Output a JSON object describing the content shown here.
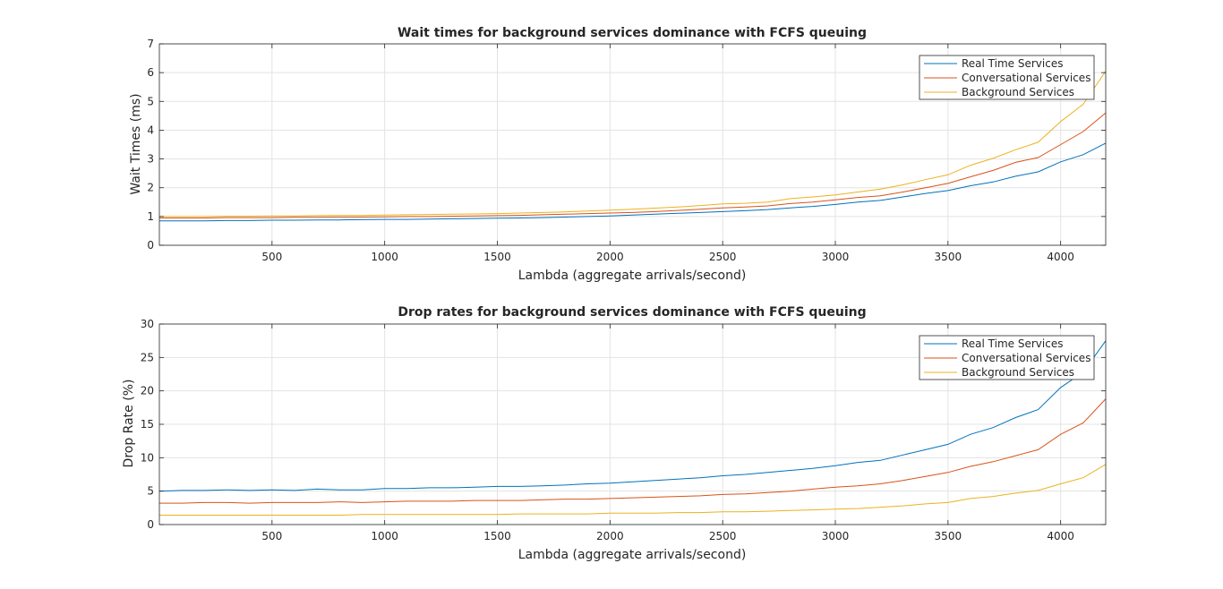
{
  "chart_data": [
    {
      "type": "line",
      "title": "Wait times for background services dominance with FCFS queuing",
      "xlabel": "Lambda (aggregate arrivals/second)",
      "ylabel": "Wait Times (ms)",
      "xlim": [
        0,
        4200
      ],
      "ylim": [
        0,
        7
      ],
      "xticks": [
        500,
        1000,
        1500,
        2000,
        2500,
        3000,
        3500,
        4000
      ],
      "yticks": [
        0,
        1,
        2,
        3,
        4,
        5,
        6,
        7
      ],
      "grid": true,
      "legend_position": "top-right",
      "x": [
        0,
        100,
        200,
        300,
        400,
        500,
        600,
        700,
        800,
        900,
        1000,
        1100,
        1200,
        1300,
        1400,
        1500,
        1600,
        1700,
        1800,
        1900,
        2000,
        2100,
        2200,
        2300,
        2400,
        2500,
        2600,
        2700,
        2800,
        2900,
        3000,
        3100,
        3200,
        3300,
        3400,
        3500,
        3600,
        3700,
        3800,
        3900,
        4000,
        4100,
        4200
      ],
      "series": [
        {
          "name": "Real Time Services",
          "color": "#0072BD",
          "values": [
            0.85,
            0.85,
            0.85,
            0.86,
            0.86,
            0.87,
            0.87,
            0.88,
            0.88,
            0.89,
            0.9,
            0.9,
            0.91,
            0.92,
            0.93,
            0.94,
            0.95,
            0.96,
            0.98,
            1.0,
            1.02,
            1.05,
            1.08,
            1.11,
            1.14,
            1.17,
            1.2,
            1.24,
            1.3,
            1.35,
            1.42,
            1.5,
            1.56,
            1.68,
            1.8,
            1.9,
            2.07,
            2.2,
            2.4,
            2.55,
            2.9,
            3.15,
            3.55
          ]
        },
        {
          "name": "Conversational Services",
          "color": "#D95319",
          "values": [
            0.95,
            0.95,
            0.95,
            0.96,
            0.96,
            0.96,
            0.97,
            0.97,
            0.98,
            0.98,
            0.99,
            1.0,
            1.0,
            1.01,
            1.02,
            1.03,
            1.04,
            1.06,
            1.08,
            1.1,
            1.12,
            1.14,
            1.17,
            1.21,
            1.25,
            1.3,
            1.33,
            1.37,
            1.45,
            1.5,
            1.58,
            1.66,
            1.72,
            1.85,
            2.0,
            2.15,
            2.38,
            2.6,
            2.88,
            3.05,
            3.5,
            3.95,
            4.6
          ]
        },
        {
          "name": "Background Services",
          "color": "#EDB120",
          "values": [
            1.0,
            1.0,
            1.0,
            1.01,
            1.01,
            1.02,
            1.02,
            1.03,
            1.04,
            1.04,
            1.05,
            1.06,
            1.07,
            1.08,
            1.09,
            1.1,
            1.12,
            1.14,
            1.16,
            1.19,
            1.22,
            1.25,
            1.29,
            1.33,
            1.38,
            1.44,
            1.46,
            1.5,
            1.62,
            1.68,
            1.75,
            1.85,
            1.95,
            2.1,
            2.28,
            2.45,
            2.78,
            3.02,
            3.32,
            3.58,
            4.3,
            4.9,
            6.05
          ]
        }
      ]
    },
    {
      "type": "line",
      "title": "Drop rates for background services dominance with FCFS queuing",
      "xlabel": "Lambda (aggregate arrivals/second)",
      "ylabel": "Drop Rate (%)",
      "xlim": [
        0,
        4200
      ],
      "ylim": [
        0,
        30
      ],
      "xticks": [
        500,
        1000,
        1500,
        2000,
        2500,
        3000,
        3500,
        4000
      ],
      "yticks": [
        0,
        5,
        10,
        15,
        20,
        25,
        30
      ],
      "grid": true,
      "legend_position": "top-right",
      "x": [
        0,
        100,
        200,
        300,
        400,
        500,
        600,
        700,
        800,
        900,
        1000,
        1100,
        1200,
        1300,
        1400,
        1500,
        1600,
        1700,
        1800,
        1900,
        2000,
        2100,
        2200,
        2300,
        2400,
        2500,
        2600,
        2700,
        2800,
        2900,
        3000,
        3100,
        3200,
        3300,
        3400,
        3500,
        3600,
        3700,
        3800,
        3900,
        4000,
        4100,
        4200
      ],
      "series": [
        {
          "name": "Real Time Services",
          "color": "#0072BD",
          "values": [
            5.0,
            5.1,
            5.1,
            5.2,
            5.1,
            5.2,
            5.1,
            5.3,
            5.2,
            5.2,
            5.4,
            5.4,
            5.5,
            5.5,
            5.6,
            5.7,
            5.7,
            5.8,
            5.9,
            6.1,
            6.2,
            6.4,
            6.6,
            6.8,
            7.0,
            7.3,
            7.5,
            7.8,
            8.1,
            8.4,
            8.8,
            9.3,
            9.6,
            10.4,
            11.2,
            12.0,
            13.5,
            14.5,
            16.0,
            17.2,
            20.5,
            22.8,
            27.5
          ]
        },
        {
          "name": "Conversational Services",
          "color": "#D95319",
          "values": [
            3.2,
            3.2,
            3.3,
            3.3,
            3.2,
            3.3,
            3.3,
            3.3,
            3.4,
            3.3,
            3.4,
            3.5,
            3.5,
            3.5,
            3.6,
            3.6,
            3.6,
            3.7,
            3.8,
            3.8,
            3.9,
            4.0,
            4.1,
            4.2,
            4.3,
            4.5,
            4.6,
            4.8,
            5.0,
            5.3,
            5.6,
            5.8,
            6.1,
            6.6,
            7.2,
            7.8,
            8.7,
            9.4,
            10.3,
            11.2,
            13.5,
            15.2,
            18.8
          ]
        },
        {
          "name": "Background Services",
          "color": "#EDB120",
          "values": [
            1.4,
            1.4,
            1.4,
            1.4,
            1.4,
            1.4,
            1.4,
            1.4,
            1.4,
            1.5,
            1.5,
            1.5,
            1.5,
            1.5,
            1.5,
            1.5,
            1.6,
            1.6,
            1.6,
            1.6,
            1.7,
            1.7,
            1.7,
            1.8,
            1.8,
            1.9,
            1.9,
            2.0,
            2.1,
            2.2,
            2.3,
            2.4,
            2.6,
            2.8,
            3.1,
            3.3,
            3.9,
            4.2,
            4.7,
            5.1,
            6.1,
            7.0,
            9.0
          ]
        }
      ]
    }
  ]
}
